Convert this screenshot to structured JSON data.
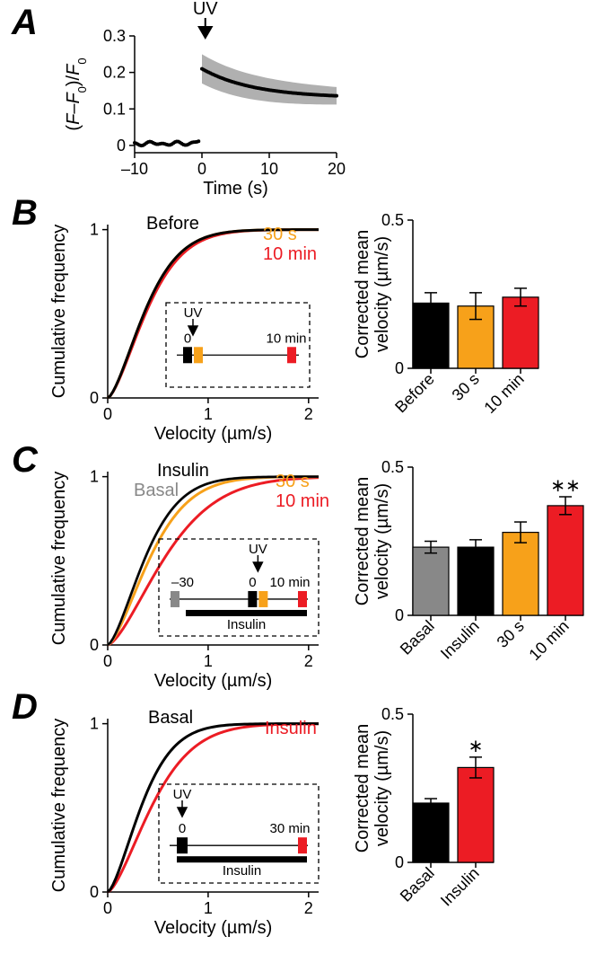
{
  "figure": {
    "panel_letters": {
      "A": "A",
      "B": "B",
      "C": "C",
      "D": "D"
    },
    "colors": {
      "black": "#000000",
      "gray_fill": "#b0b0b0",
      "gray_line": "#888888",
      "orange": "#f7a11a",
      "red": "#ec1c24",
      "white": "#ffffff"
    },
    "panel_A": {
      "uv_label": "UV",
      "xlabel": "Time (s)",
      "ylabel": "(F–F₀)/F₀",
      "xticks": [
        -10,
        0,
        10,
        20
      ],
      "yticks": [
        0,
        0.1,
        0.2,
        0.3
      ],
      "xlim": [
        -10,
        20
      ],
      "ylim": [
        -0.02,
        0.3
      ],
      "trace_pre_y": 0.005,
      "trace_peak_y": 0.21,
      "trace_end_y": 0.13,
      "shade_half": 0.04,
      "title_fontsize": 20,
      "label_fontsize": 20,
      "tick_fontsize": 18
    },
    "cdf_common": {
      "xlabel": "Velocity (µm/s)",
      "ylabel": "Cumulative frequency",
      "xticks": [
        0,
        1,
        2
      ],
      "yticks": [
        0,
        1
      ],
      "xlim": [
        0,
        2.1
      ],
      "ylim": [
        0,
        1.03
      ]
    },
    "bar_common": {
      "ylabel": "Corrected mean\nvelocity (µm/s)",
      "ylim": [
        0,
        0.5
      ],
      "yticks": [
        0,
        0.5
      ]
    },
    "panel_B": {
      "legend": {
        "before": "Before",
        "t30s": "30 s",
        "t10min": "10 min"
      },
      "cdf_k50": {
        "before": 0.46,
        "t30s": 0.46,
        "t10min": 0.48
      },
      "inset": {
        "uv_label": "UV",
        "t0": "0",
        "tend": "10 min"
      },
      "bars": [
        {
          "label": "Before",
          "value": 0.22,
          "err": 0.035,
          "color": "#000000"
        },
        {
          "label": "30 s",
          "value": 0.21,
          "err": 0.045,
          "color": "#f7a11a"
        },
        {
          "label": "10 min",
          "value": 0.24,
          "err": 0.03,
          "color": "#ec1c24"
        }
      ]
    },
    "panel_C": {
      "legend": {
        "basal": "Basal",
        "insulin": "Insulin",
        "t30s": "30 s",
        "t10min": "10 min"
      },
      "cdf_k50": {
        "basal": 0.46,
        "insulin": 0.46,
        "t30s": 0.52,
        "t10min": 0.7
      },
      "inset": {
        "uv_label": "UV",
        "tneg": "–30",
        "t0": "0",
        "tend": "10 min",
        "insulin_label": "Insulin"
      },
      "sig_label": "∗∗",
      "bars": [
        {
          "label": "Basal",
          "value": 0.23,
          "err": 0.02,
          "color": "#888888"
        },
        {
          "label": "Insulin",
          "value": 0.23,
          "err": 0.025,
          "color": "#000000"
        },
        {
          "label": "30 s",
          "value": 0.28,
          "err": 0.035,
          "color": "#f7a11a"
        },
        {
          "label": "10 min",
          "value": 0.37,
          "err": 0.03,
          "color": "#ec1c24"
        }
      ]
    },
    "panel_D": {
      "legend": {
        "basal": "Basal",
        "insulin": "Insulin"
      },
      "cdf_k50": {
        "basal": 0.42,
        "insulin": 0.55
      },
      "inset": {
        "uv_label": "UV",
        "t0": "0",
        "tend": "30 min",
        "insulin_label": "Insulin"
      },
      "sig_label": "∗",
      "bars": [
        {
          "label": "Basal",
          "value": 0.2,
          "err": 0.015,
          "color": "#000000"
        },
        {
          "label": "Insulin",
          "value": 0.32,
          "err": 0.035,
          "color": "#ec1c24"
        }
      ]
    }
  }
}
